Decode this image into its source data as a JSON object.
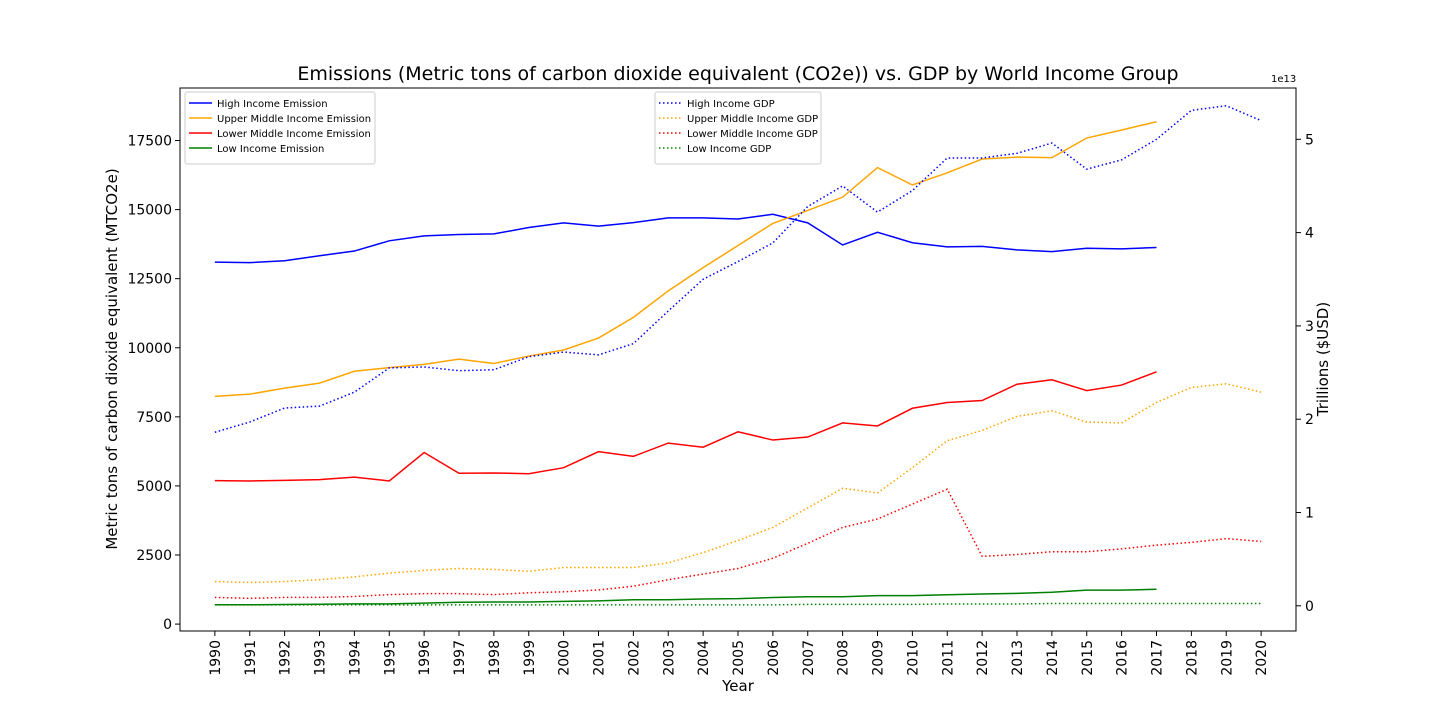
{
  "chart_data": {
    "type": "line",
    "title": "Emissions (Metric tons of carbon dioxide equivalent (CO2e)) vs. GDP by World Income Group",
    "xlabel": "Year",
    "ylabel": "Metric tons of carbon dioxide equivalent (MTCO2e)",
    "y2label": "Trillions ($USD)",
    "y2_offset_text": "1e13",
    "xlim": [
      1989,
      2021
    ],
    "ylim": [
      -250,
      19400
    ],
    "y2lim": [
      -0.27,
      5.55
    ],
    "x": [
      1990,
      1991,
      1992,
      1993,
      1994,
      1995,
      1996,
      1997,
      1998,
      1999,
      2000,
      2001,
      2002,
      2003,
      2004,
      2005,
      2006,
      2007,
      2008,
      2009,
      2010,
      2011,
      2012,
      2013,
      2014,
      2015,
      2016,
      2017,
      2018,
      2019,
      2020
    ],
    "x_tick_labels": [
      "1990",
      "1991",
      "1992",
      "1993",
      "1994",
      "1995",
      "1996",
      "1997",
      "1998",
      "1999",
      "2000",
      "2001",
      "2002",
      "2003",
      "2004",
      "2005",
      "2006",
      "2007",
      "2008",
      "2009",
      "2010",
      "2011",
      "2012",
      "2013",
      "2014",
      "2015",
      "2016",
      "2017",
      "2018",
      "2019",
      "2020"
    ],
    "y_ticks": [
      0,
      2500,
      5000,
      7500,
      10000,
      12500,
      15000,
      17500
    ],
    "y_tick_labels": [
      "0",
      "2500",
      "5000",
      "7500",
      "10000",
      "12500",
      "15000",
      "17500"
    ],
    "y2_ticks": [
      0,
      1,
      2,
      3,
      4,
      5
    ],
    "y2_tick_labels": [
      "0",
      "1",
      "2",
      "3",
      "4",
      "5"
    ],
    "emission_series": [
      {
        "name": "High Income Emission",
        "color": "#0000ff",
        "values": [
          13100,
          13080,
          13150,
          13330,
          13500,
          13870,
          14050,
          14100,
          14120,
          14350,
          14520,
          14400,
          14530,
          14700,
          14700,
          14660,
          14830,
          14520,
          13720,
          14180,
          13800,
          13650,
          13670,
          13540,
          13480,
          13600,
          13580,
          13630
        ]
      },
      {
        "name": "Upper Middle Income Emission",
        "color": "#ffa500",
        "values": [
          8240,
          8320,
          8540,
          8720,
          9150,
          9280,
          9400,
          9590,
          9430,
          9700,
          9920,
          10350,
          11100,
          12060,
          12900,
          13700,
          14500,
          14970,
          15450,
          16520,
          15890,
          16330,
          16830,
          16900,
          16880,
          17590,
          17880,
          18180
        ]
      },
      {
        "name": "Lower Middle Income Emission",
        "color": "#ff0000",
        "values": [
          5190,
          5180,
          5200,
          5230,
          5320,
          5180,
          6210,
          5460,
          5470,
          5440,
          5660,
          6240,
          6070,
          6550,
          6400,
          6960,
          6660,
          6770,
          7280,
          7170,
          7810,
          8020,
          8090,
          8680,
          8840,
          8450,
          8650,
          9130
        ]
      },
      {
        "name": "Low Income Emission",
        "color": "#008000",
        "values": [
          700,
          700,
          710,
          720,
          730,
          730,
          760,
          790,
          800,
          800,
          820,
          840,
          880,
          880,
          910,
          920,
          960,
          990,
          990,
          1030,
          1030,
          1060,
          1090,
          1110,
          1150,
          1230,
          1230,
          1260
        ]
      }
    ],
    "gdp_series": [
      {
        "name": "High Income GDP",
        "color": "#0000ff",
        "values": [
          1.86,
          1.97,
          2.12,
          2.14,
          2.29,
          2.55,
          2.56,
          2.52,
          2.53,
          2.67,
          2.72,
          2.69,
          2.81,
          3.16,
          3.5,
          3.69,
          3.89,
          4.28,
          4.5,
          4.22,
          4.45,
          4.8,
          4.8,
          4.85,
          4.96,
          4.68,
          4.78,
          5.0,
          5.31,
          5.36,
          5.2
        ]
      },
      {
        "name": "Upper Middle Income GDP",
        "color": "#ffa500",
        "values": [
          0.26,
          0.25,
          0.26,
          0.28,
          0.31,
          0.35,
          0.38,
          0.4,
          0.39,
          0.37,
          0.41,
          0.41,
          0.41,
          0.46,
          0.57,
          0.7,
          0.84,
          1.05,
          1.26,
          1.21,
          1.48,
          1.77,
          1.88,
          2.03,
          2.09,
          1.97,
          1.96,
          2.18,
          2.34,
          2.38,
          2.29
        ]
      },
      {
        "name": "Lower Middle Income GDP",
        "color": "#ff0000",
        "values": [
          0.09,
          0.08,
          0.09,
          0.09,
          0.1,
          0.12,
          0.13,
          0.13,
          0.12,
          0.14,
          0.15,
          0.17,
          0.21,
          0.28,
          0.34,
          0.4,
          0.51,
          0.67,
          0.84,
          0.93,
          1.09,
          1.25,
          0.53,
          0.55,
          0.58,
          0.58,
          0.61,
          0.65,
          0.68,
          0.72,
          0.69
        ]
      },
      {
        "name": "Low Income GDP",
        "color": "#008000",
        "values": [
          0.01,
          0.01,
          0.01,
          0.01,
          0.01,
          0.01,
          0.01,
          0.01,
          0.01,
          0.01,
          0.01,
          0.01,
          0.01,
          0.01,
          0.01,
          0.01,
          0.01,
          0.015,
          0.015,
          0.015,
          0.015,
          0.02,
          0.02,
          0.02,
          0.025,
          0.025,
          0.025,
          0.025,
          0.025,
          0.025,
          0.025
        ]
      }
    ],
    "legend_left_position": "upper-left",
    "legend_right_position": "upper-center",
    "grid": false
  }
}
